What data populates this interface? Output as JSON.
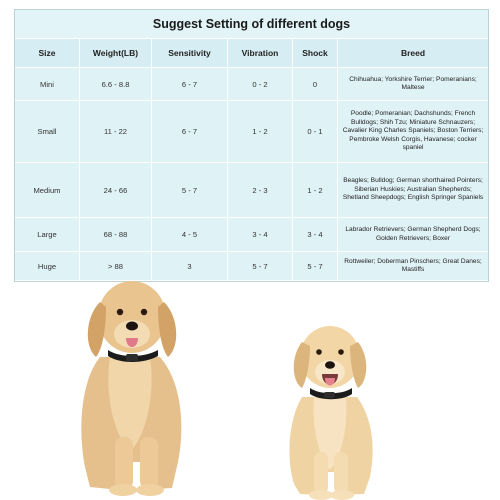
{
  "title": "Suggest Setting of different dogs",
  "columns": [
    "Size",
    "Weight(LB)",
    "Sensitivity",
    "Vibration",
    "Shock",
    "Breed"
  ],
  "rows": [
    {
      "size": "Mini",
      "weight": "6.6 - 8.8",
      "sensitivity": "6 - 7",
      "vibration": "0 - 2",
      "shock": "0",
      "breed": "Chihuahua; Yorkshire Terrier; Pomeranians; Maltese"
    },
    {
      "size": "Small",
      "weight": "11 - 22",
      "sensitivity": "6 - 7",
      "vibration": "1 - 2",
      "shock": "0 - 1",
      "breed": "Poodle; Pomeranian; Dachshunds; French Bulldogs; Shih Tzu; Miniature Schnauzers; Cavalier King Charles Spaniels; Boston Terriers; Pembroke Welsh Corgis, Havanese; cocker spaniel"
    },
    {
      "size": "Medium",
      "weight": "24 - 66",
      "sensitivity": "5 - 7",
      "vibration": "2 - 3",
      "shock": "1 - 2",
      "breed": "Beagles; Bulldog; German shorthaired Pointers; Siberian Huskies; Australian Shepherds; Shetland Sheepdogs; English Springer Spaniels"
    },
    {
      "size": "Large",
      "weight": "68 - 88",
      "sensitivity": "4 - 5",
      "vibration": "3 - 4",
      "shock": "3 - 4",
      "breed": "Labrador Retrievers; German Shepherd Dogs; Golden Retrievers; Boxer"
    },
    {
      "size": "Huge",
      "weight": "> 88",
      "sensitivity": "3",
      "vibration": "5 - 7",
      "shock": "5 - 7",
      "breed": "Rottweiler; Doberman Pinschers; Great Danes; Mastiffs"
    }
  ],
  "colors": {
    "table_bg": "#dff2f6",
    "dog_fur": "#e9c48f",
    "puppy_fur": "#f2d6a6",
    "collar": "#1b1b1b"
  }
}
